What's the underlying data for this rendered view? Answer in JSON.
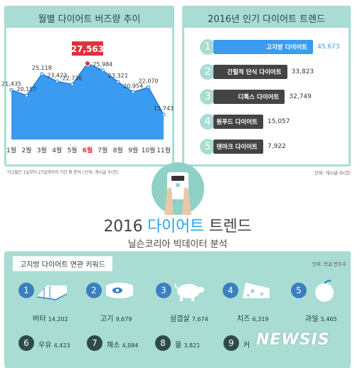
{
  "left_panel": {
    "title": "월별 다이어트 버즈량 추이",
    "note": "*11월은 1일부터 27일까지의 기간 중 분석 / 단위: 게시글 수(건)",
    "peak_label": "27,563"
  },
  "right_panel": {
    "title": "2016년 인기 다이어트 트렌드",
    "unit": "단위: 게시글 수(건)"
  },
  "chart_data": [
    {
      "type": "area",
      "title": "월별 다이어트 버즈량 추이",
      "categories": [
        "1월",
        "2월",
        "3월",
        "4월",
        "5월",
        "6월",
        "7월",
        "8월",
        "9월",
        "10월",
        "11월"
      ],
      "values": [
        21435,
        20157,
        25118,
        23423,
        22736,
        27563,
        25984,
        23321,
        20954,
        22070,
        15743
      ],
      "value_labels": [
        "21,435",
        "20,157",
        "25,118",
        "23,423",
        "22,736",
        "27,563",
        "25,984",
        "23,321",
        "20,954",
        "22,070",
        "15,743"
      ],
      "highlight_index": 5,
      "colors": {
        "fill": "#3a9bf0",
        "line": "#1b7bd8",
        "highlight": "#e0303a"
      }
    },
    {
      "type": "bar",
      "title": "2016년 인기 다이어트 트렌드",
      "categories": [
        "고지방 다이어트",
        "간헐적 단식 다이어트",
        "디톡스 다이어트",
        "원푸드 다이어트",
        "덴마크 다이어트"
      ],
      "values": [
        45673,
        33823,
        32749,
        15057,
        7922
      ],
      "value_labels": [
        "45,673",
        "33,823",
        "32,749",
        "15,057",
        "7,922"
      ],
      "ranks": [
        "1",
        "2",
        "3",
        "4",
        "5"
      ],
      "colors": {
        "top": "#3a9bf0",
        "rest": "#444444"
      }
    }
  ],
  "headline": {
    "year": "2016",
    "highlight": "다이어트",
    "rest": "트렌드",
    "subtitle": "닐슨코리아 빅데이터 분석"
  },
  "keywords": {
    "title": "고지방 다이어트 연관 키워드",
    "unit": "단위: 언급 빈도수",
    "items": [
      {
        "rank": "1",
        "name": "버터",
        "value": "14,202",
        "icon": "butter-icon"
      },
      {
        "rank": "2",
        "name": "고기",
        "value": "9,679",
        "icon": "meat-icon"
      },
      {
        "rank": "3",
        "name": "삼겹살",
        "value": "7,674",
        "icon": "pig-icon"
      },
      {
        "rank": "4",
        "name": "치즈",
        "value": "6,319",
        "icon": "cheese-icon"
      },
      {
        "rank": "5",
        "name": "과일",
        "value": "5,465",
        "icon": "fruit-icon"
      },
      {
        "rank": "6",
        "name": "우유",
        "value": "4,423"
      },
      {
        "rank": "7",
        "name": "채소",
        "value": "4,084"
      },
      {
        "rank": "8",
        "name": "물",
        "value": "3,821"
      },
      {
        "rank": "9",
        "name": "커",
        "value": ""
      }
    ]
  },
  "watermark": "NEWSIS"
}
